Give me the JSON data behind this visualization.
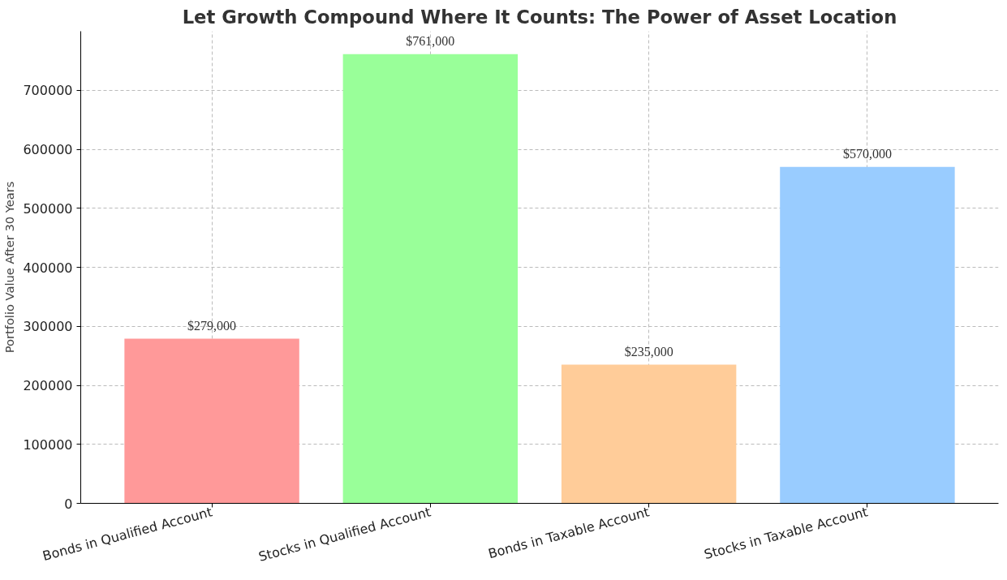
{
  "chart_data": {
    "type": "bar",
    "title": "Let Growth Compound Where It Counts: The Power of Asset Location",
    "ylabel": "Portfolio Value After 30 Years",
    "categories": [
      "Bonds in Qualified Account",
      "Stocks in Qualified Account",
      "Bonds in Taxable Account",
      "Stocks in Taxable Account"
    ],
    "values": [
      279000,
      761000,
      235000,
      570000
    ],
    "colors": [
      "#ff9999",
      "#99ff99",
      "#ffcc99",
      "#99ccff"
    ],
    "value_labels": [
      "$279,000",
      "$761,000",
      "$235,000",
      "$570,000"
    ],
    "ylim": [
      0,
      800000
    ],
    "yticks": [
      0,
      100000,
      200000,
      300000,
      400000,
      500000,
      600000,
      700000
    ],
    "grid": true
  }
}
